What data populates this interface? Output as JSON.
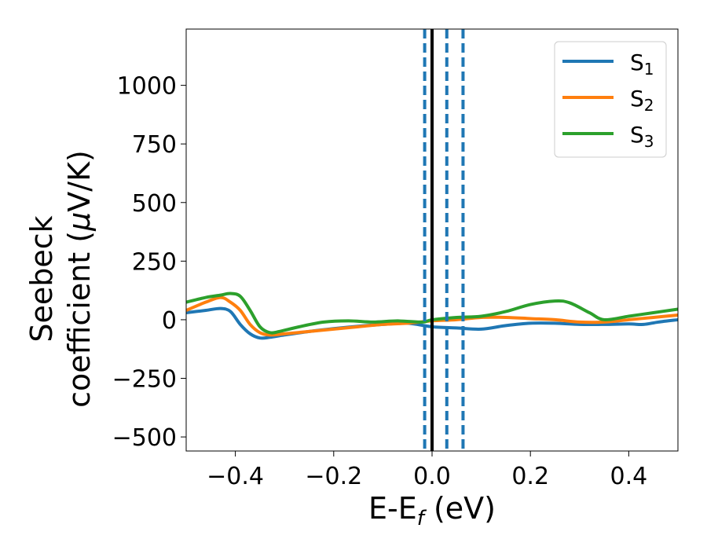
{
  "chart_data": {
    "type": "line",
    "xlabel": {
      "main": "E-E",
      "sub": "f",
      "unit": " (eV)"
    },
    "ylabel": {
      "line1": "Seebeck",
      "line2_pre": "coefficient  (",
      "mu": "μ",
      "line2_post": "V/K)"
    },
    "xlim": [
      -0.5,
      0.5
    ],
    "ylim": [
      -560,
      1240
    ],
    "xticks": [
      -0.4,
      -0.2,
      0.0,
      0.2,
      0.4
    ],
    "xtick_labels": [
      "−0.4",
      "−0.2",
      "0.0",
      "0.2",
      "0.4"
    ],
    "yticks": [
      -500,
      -250,
      0,
      250,
      500,
      750,
      1000
    ],
    "ytick_labels": [
      "−500",
      "−250",
      "0",
      "250",
      "500",
      "750",
      "1000"
    ],
    "grid": false,
    "legend_position": "top-right",
    "colors": {
      "s1": "#1f77b4",
      "s2": "#ff7f0e",
      "s3": "#2ca02c",
      "fermi": "#000000",
      "marker": "#1f77b4"
    },
    "fermi_line_x": 0.0,
    "dashed_lines_x": [
      -0.015,
      0.03,
      0.063
    ],
    "series": [
      {
        "name": {
          "base": "S",
          "sub": "1"
        },
        "color": "#1f77b4",
        "x": [
          -0.5,
          -0.46,
          -0.43,
          -0.41,
          -0.39,
          -0.37,
          -0.35,
          -0.33,
          -0.3,
          -0.25,
          -0.2,
          -0.15,
          -0.1,
          -0.05,
          0.0,
          0.05,
          0.1,
          0.15,
          0.2,
          0.25,
          0.3,
          0.35,
          0.4,
          0.43,
          0.46,
          0.5
        ],
        "y": [
          30,
          40,
          48,
          35,
          -20,
          -60,
          -78,
          -75,
          -65,
          -50,
          -38,
          -28,
          -20,
          -15,
          -30,
          -35,
          -40,
          -25,
          -15,
          -15,
          -20,
          -20,
          -18,
          -20,
          -10,
          0
        ]
      },
      {
        "name": {
          "base": "S",
          "sub": "2"
        },
        "color": "#ff7f0e",
        "x": [
          -0.5,
          -0.46,
          -0.43,
          -0.41,
          -0.39,
          -0.37,
          -0.35,
          -0.33,
          -0.3,
          -0.25,
          -0.2,
          -0.15,
          -0.1,
          -0.05,
          0.0,
          0.05,
          0.1,
          0.15,
          0.2,
          0.25,
          0.3,
          0.35,
          0.4,
          0.45,
          0.5
        ],
        "y": [
          40,
          75,
          95,
          75,
          40,
          -20,
          -55,
          -65,
          -60,
          -50,
          -40,
          -30,
          -20,
          -15,
          -5,
          0,
          10,
          10,
          5,
          0,
          -10,
          -10,
          0,
          10,
          20
        ]
      },
      {
        "name": {
          "base": "S",
          "sub": "3"
        },
        "color": "#2ca02c",
        "x": [
          -0.5,
          -0.46,
          -0.43,
          -0.41,
          -0.39,
          -0.37,
          -0.35,
          -0.33,
          -0.31,
          -0.27,
          -0.22,
          -0.17,
          -0.12,
          -0.07,
          -0.02,
          0.0,
          0.05,
          0.1,
          0.15,
          0.2,
          0.25,
          0.28,
          0.32,
          0.35,
          0.4,
          0.45,
          0.5
        ],
        "y": [
          75,
          95,
          105,
          112,
          100,
          40,
          -30,
          -55,
          -50,
          -30,
          -10,
          -5,
          -10,
          -5,
          -10,
          0,
          10,
          15,
          35,
          65,
          80,
          72,
          30,
          0,
          15,
          30,
          45
        ]
      }
    ]
  }
}
